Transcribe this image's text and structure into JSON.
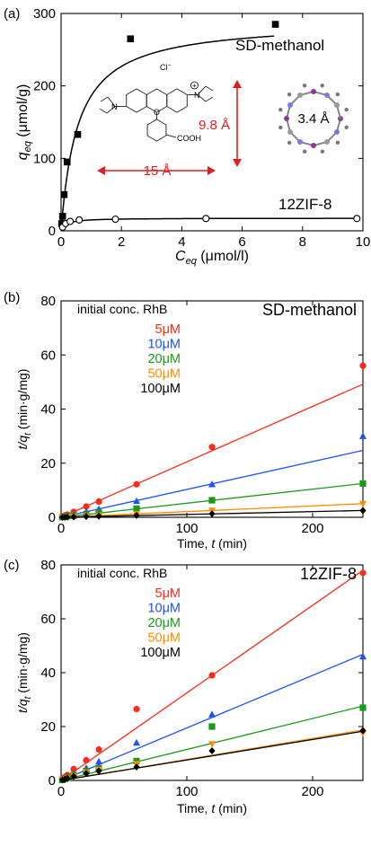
{
  "chart_data": [
    {
      "panel": "(a)",
      "type": "scatter",
      "xlabel_main": "C",
      "xlabel_sub": "eq",
      "xlabel_unit": " (μmol/l)",
      "ylabel_main": "q",
      "ylabel_sub": "eq",
      "ylabel_unit": " (μmol/g)",
      "xlim": [
        0,
        10
      ],
      "ylim": [
        0,
        300
      ],
      "xticks": [
        0,
        2,
        4,
        6,
        8,
        10
      ],
      "yticks": [
        0,
        100,
        200,
        300
      ],
      "series": [
        {
          "name": "SD-methanol",
          "marker": "filled-square",
          "x": [
            0.02,
            0.05,
            0.1,
            0.2,
            0.55,
            2.3,
            7.1
          ],
          "y": [
            10,
            20,
            50,
            95,
            133,
            265,
            285
          ],
          "fit": {
            "model": "langmuir",
            "qmax": 290,
            "K": 1.8
          }
        },
        {
          "name": "12ZIF-8",
          "marker": "open-circle",
          "x": [
            0.05,
            0.15,
            0.3,
            0.6,
            1.8,
            4.8,
            9.8
          ],
          "y": [
            5,
            10,
            13,
            15,
            16,
            17,
            17
          ],
          "fit": {
            "model": "langmuir",
            "qmax": 17.5,
            "K": 6
          }
        }
      ],
      "annotations": {
        "molecule_dim_height": "9.8 Å",
        "molecule_dim_width": "15 Å",
        "pore_size": "3.4 Å",
        "chloride": "Cl",
        "chloride_sup": "−",
        "plus": "+",
        "acid": "COOH"
      },
      "legend_labels": [
        "SD-methanol",
        "12ZIF-8"
      ]
    },
    {
      "panel": "(b)",
      "type": "scatter",
      "title": "SD-methanol",
      "legend_title": "initial conc. RhB",
      "xlabel": "Time, t (min)",
      "ylabel": "t/qt (min·g/mg)",
      "xlim": [
        0,
        240
      ],
      "ylim": [
        0,
        80
      ],
      "xticks": [
        0,
        100,
        200
      ],
      "yticks": [
        0,
        20,
        40,
        60,
        80
      ],
      "series": [
        {
          "name": "5μM",
          "color": "#ff2a1a",
          "marker": "circle",
          "x": [
            1,
            3,
            5,
            10,
            20,
            30,
            60,
            120,
            240
          ],
          "y": [
            0.3,
            0.7,
            1.0,
            2.0,
            4.0,
            5.8,
            12.2,
            26.0,
            56.0
          ],
          "fit": [
            0,
            0.205
          ]
        },
        {
          "name": "10μM",
          "color": "#1e50ff",
          "marker": "triangle",
          "x": [
            1,
            3,
            5,
            10,
            20,
            30,
            60,
            120,
            240
          ],
          "y": [
            0.2,
            0.4,
            0.6,
            1.1,
            2.1,
            3.0,
            6.0,
            12.2,
            30.0
          ],
          "fit": [
            0,
            0.103
          ]
        },
        {
          "name": "20μM",
          "color": "#1a9a1a",
          "marker": "square",
          "x": [
            1,
            3,
            5,
            10,
            20,
            30,
            60,
            120,
            240
          ],
          "y": [
            0.1,
            0.2,
            0.4,
            0.6,
            1.1,
            1.7,
            3.2,
            6.3,
            12.5
          ],
          "fit": [
            0,
            0.052
          ]
        },
        {
          "name": "50μM",
          "color": "#ff8c00",
          "marker": "triangle-down",
          "x": [
            1,
            3,
            5,
            10,
            20,
            30,
            60,
            120,
            240
          ],
          "y": [
            0.05,
            0.1,
            0.15,
            0.3,
            0.5,
            0.7,
            1.3,
            2.5,
            5.0
          ],
          "fit": [
            0,
            0.021
          ]
        },
        {
          "name": "100μM",
          "color": "#000000",
          "marker": "diamond",
          "x": [
            1,
            3,
            5,
            10,
            20,
            30,
            60,
            120,
            240
          ],
          "y": [
            0.02,
            0.05,
            0.1,
            0.15,
            0.3,
            0.4,
            0.7,
            1.3,
            2.5
          ],
          "fit": [
            0,
            0.0105
          ]
        }
      ]
    },
    {
      "panel": "(c)",
      "type": "scatter",
      "title": "12ZIF-8",
      "legend_title": "initial conc. RhB",
      "xlabel": "Time, t (min)",
      "ylabel": "t/qt (min·g/mg)",
      "xlim": [
        0,
        240
      ],
      "ylim": [
        0,
        80
      ],
      "xticks": [
        0,
        100,
        200
      ],
      "yticks": [
        0,
        20,
        40,
        60,
        80
      ],
      "series": [
        {
          "name": "5μM",
          "color": "#ff2a1a",
          "marker": "circle",
          "x": [
            1,
            3,
            5,
            10,
            20,
            30,
            60,
            120,
            240
          ],
          "y": [
            0.5,
            1.3,
            2.0,
            4.2,
            7.5,
            11.5,
            26.5,
            39.0,
            77.0
          ],
          "fit": [
            0,
            0.325
          ]
        },
        {
          "name": "10μM",
          "color": "#1e50ff",
          "marker": "triangle",
          "x": [
            1,
            3,
            5,
            10,
            20,
            30,
            60,
            120,
            240
          ],
          "y": [
            0.3,
            0.8,
            1.3,
            2.5,
            4.6,
            7.0,
            14.0,
            24.5,
            46.0
          ],
          "fit": [
            0,
            0.195
          ]
        },
        {
          "name": "20μM",
          "color": "#1a9a1a",
          "marker": "square",
          "x": [
            1,
            3,
            5,
            10,
            20,
            30,
            60,
            120,
            240
          ],
          "y": [
            0.2,
            0.6,
            1.0,
            2.0,
            3.5,
            4.5,
            7.2,
            20.0,
            27.0
          ],
          "fit": [
            0,
            0.115
          ]
        },
        {
          "name": "50μM",
          "color": "#ff8c00",
          "marker": "triangle-down",
          "x": [
            1,
            3,
            5,
            10,
            20,
            30,
            60,
            120,
            240
          ],
          "y": [
            0.2,
            0.5,
            0.8,
            1.7,
            3.0,
            4.0,
            6.2,
            13.5,
            17.5
          ],
          "fit": [
            0,
            0.078
          ]
        },
        {
          "name": "100μM",
          "color": "#000000",
          "marker": "diamond",
          "x": [
            1,
            3,
            5,
            10,
            20,
            30,
            60,
            120,
            240
          ],
          "y": [
            0.2,
            0.5,
            0.8,
            1.5,
            2.6,
            3.5,
            5.0,
            11.0,
            18.5
          ],
          "fit": [
            0,
            0.076
          ]
        }
      ]
    }
  ]
}
